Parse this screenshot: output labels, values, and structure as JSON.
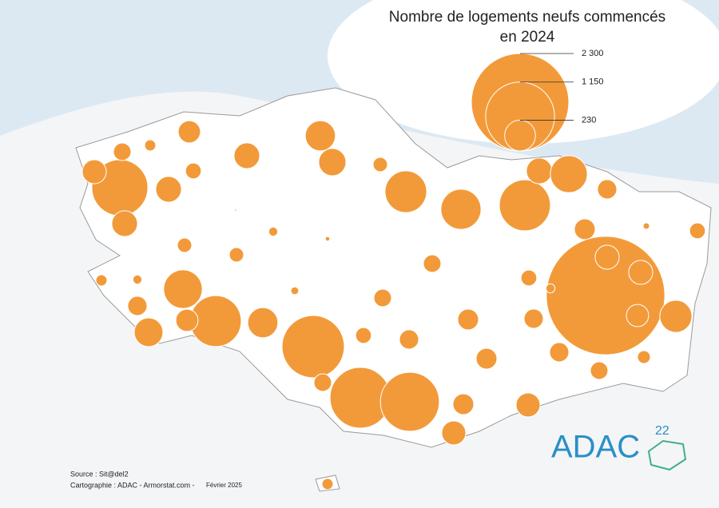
{
  "map": {
    "title_lines": [
      "Nombre de logements neufs commencés",
      "en 2024"
    ],
    "legend": [
      {
        "value": 2300,
        "label": "2 300"
      },
      {
        "value": 1150,
        "label": "1 150"
      },
      {
        "value": 230,
        "label": "230"
      }
    ],
    "color": "#f29a3a",
    "values": [
      760,
      160,
      140,
      75,
      30,
      120,
      60,
      160,
      160,
      220,
      180,
      50,
      420,
      390,
      630,
      160,
      330,
      90,
      105,
      60,
      10,
      3400,
      140,
      140,
      120,
      250,
      20,
      60,
      40,
      75,
      90,
      140,
      90,
      105,
      105,
      75,
      75,
      90,
      60,
      15,
      20,
      5,
      1,
      50,
      50,
      360,
      630,
      120,
      90,
      200,
      30,
      20,
      220,
      940,
      75,
      890,
      840,
      105,
      140,
      30
    ],
    "source": "Source : Sit@del2",
    "credits": "Cartographie : ADAC - Armorstat.com -",
    "date": "Février 2025",
    "logo": "ADAC",
    "logo_number": "22"
  }
}
